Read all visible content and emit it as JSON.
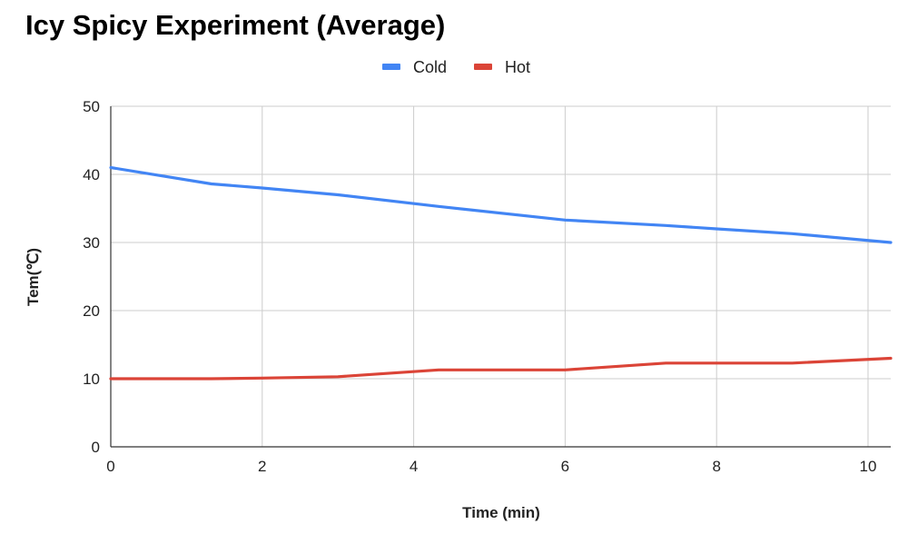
{
  "chart_data": {
    "type": "line",
    "title": "Icy Spicy Experiment (Average)",
    "xlabel": "Time (min)",
    "ylabel": "Tem(℃)",
    "xlim": [
      0,
      10.3
    ],
    "ylim": [
      0,
      50
    ],
    "x_ticks": [
      0,
      2,
      4,
      6,
      8,
      10
    ],
    "y_ticks": [
      0,
      10,
      20,
      30,
      40,
      50
    ],
    "grid": true,
    "legend_position": "top",
    "series": [
      {
        "name": "Cold",
        "color": "#4285f4",
        "points": [
          [
            0,
            41
          ],
          [
            1.33,
            38.6
          ],
          [
            2,
            38
          ],
          [
            3,
            37
          ],
          [
            4.33,
            35.3
          ],
          [
            6,
            33.3
          ],
          [
            7.33,
            32.5
          ],
          [
            8,
            32
          ],
          [
            9,
            31.3
          ],
          [
            10.3,
            30
          ]
        ]
      },
      {
        "name": "Hot",
        "color": "#db4437",
        "points": [
          [
            0,
            10
          ],
          [
            1.33,
            10
          ],
          [
            2,
            10.1
          ],
          [
            3,
            10.3
          ],
          [
            4.33,
            11.3
          ],
          [
            6,
            11.3
          ],
          [
            7.33,
            12.3
          ],
          [
            8,
            12.3
          ],
          [
            9,
            12.3
          ],
          [
            10.3,
            13
          ]
        ]
      }
    ]
  }
}
